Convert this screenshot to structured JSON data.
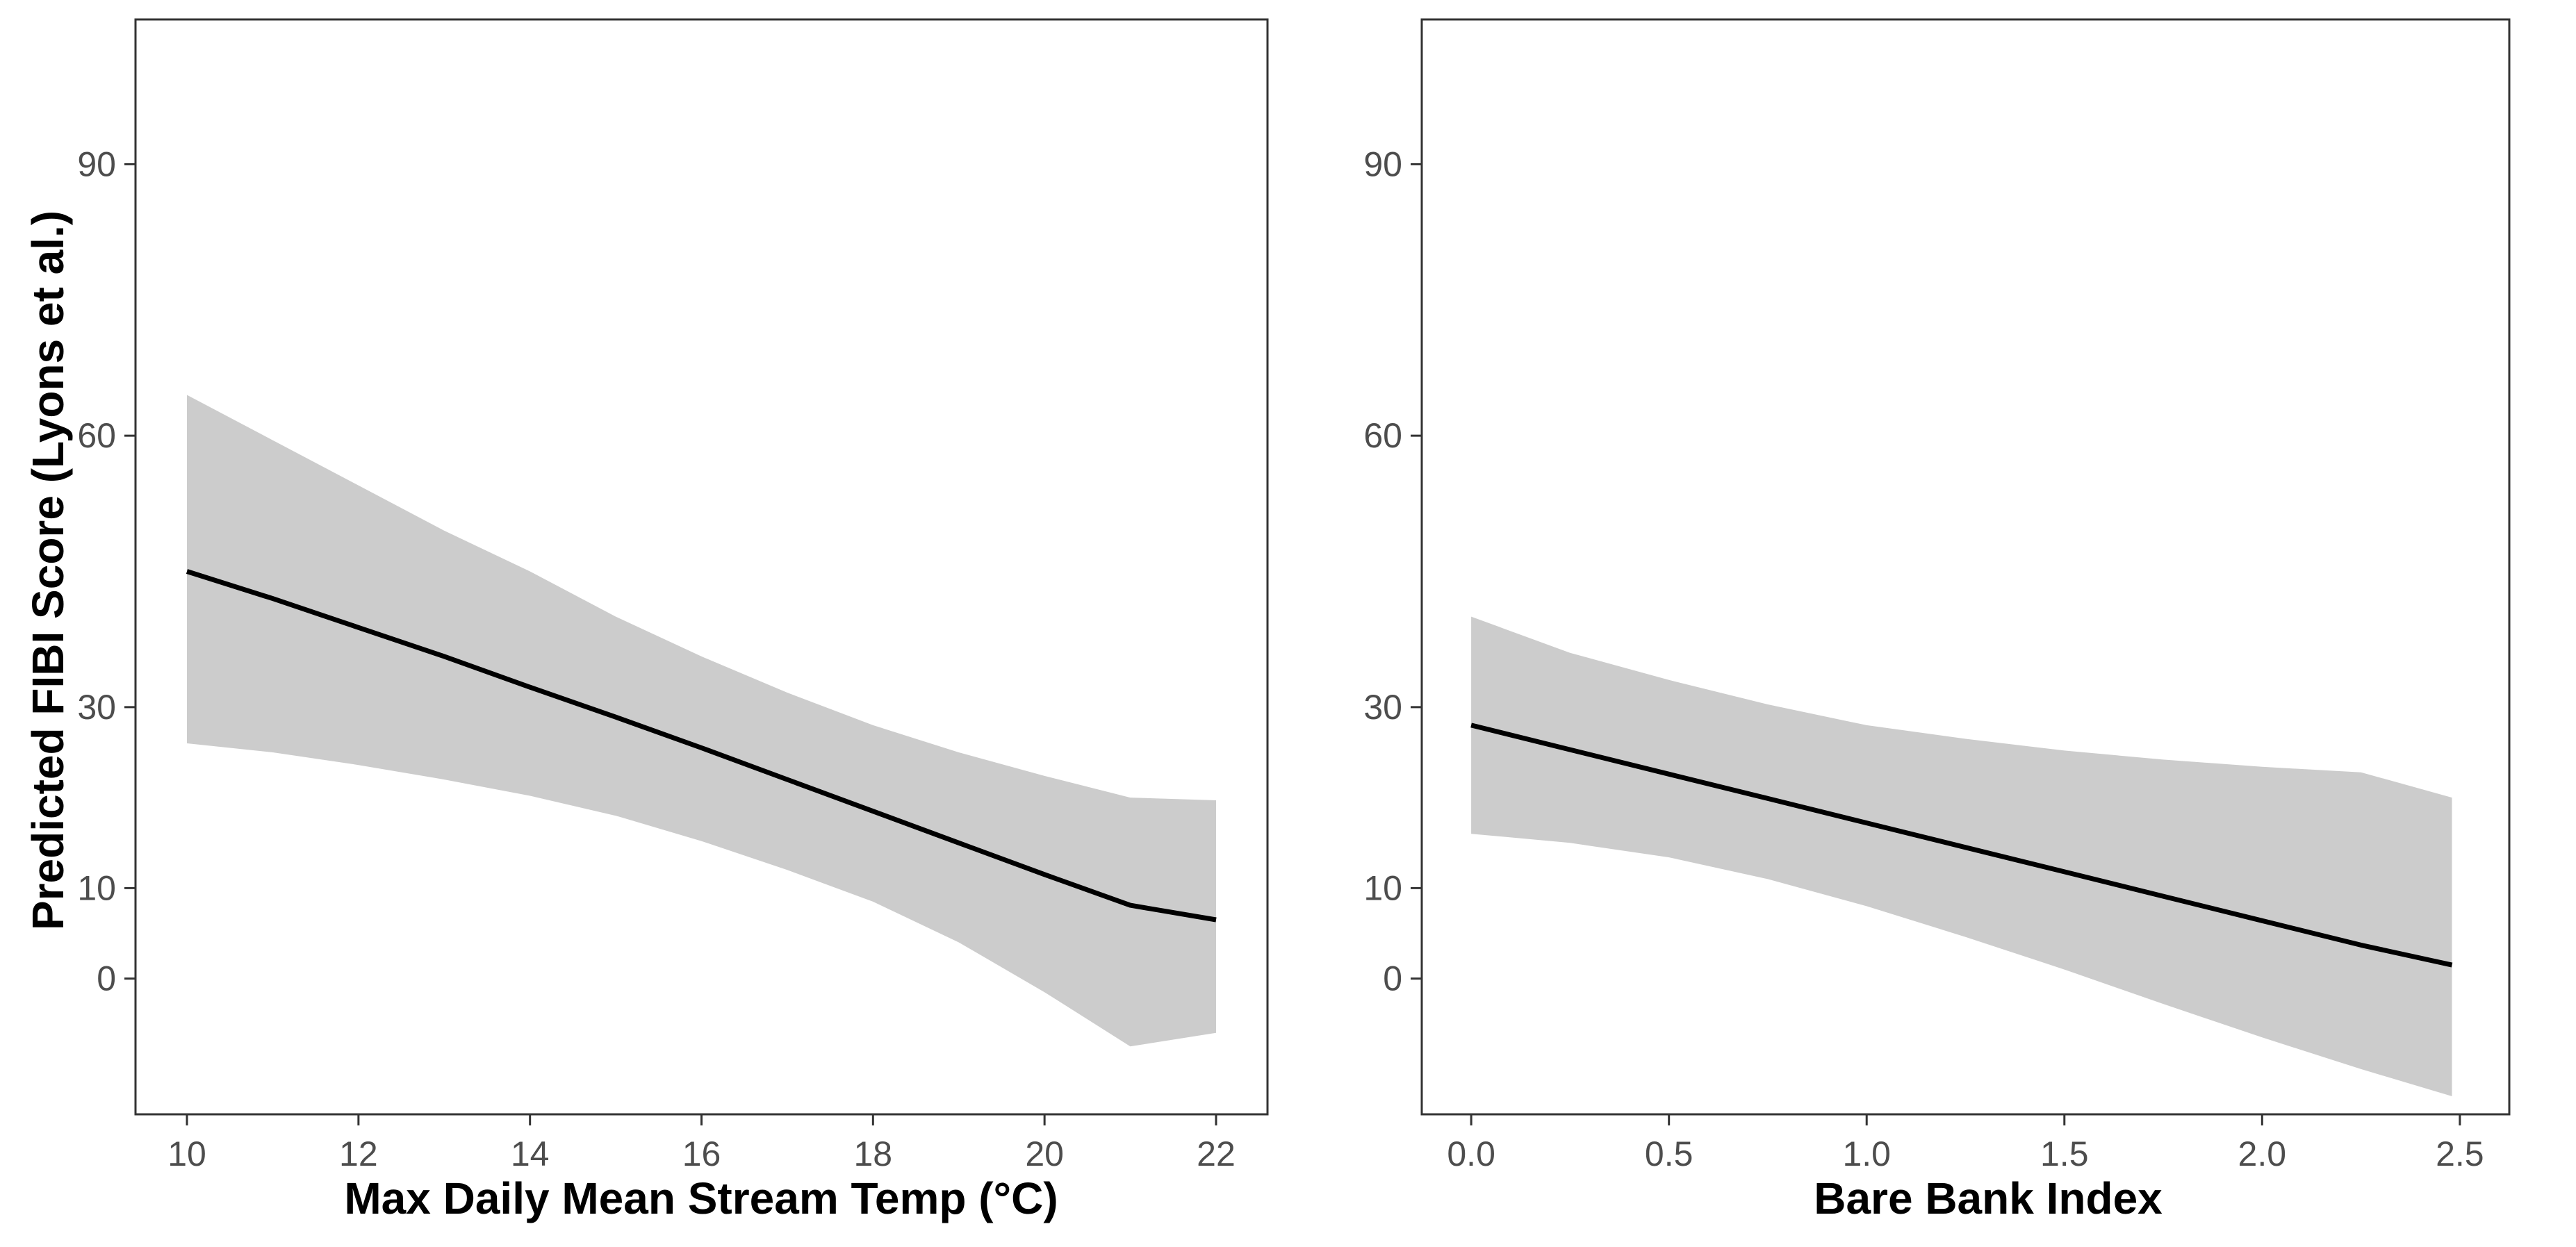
{
  "colors": {
    "background": "#ffffff",
    "band": "#cccccc",
    "line": "#000000",
    "panel_border": "#333333",
    "tick_label": "#4d4d4d"
  },
  "shared_ylabel": "Predicted FIBI Score (Lyons et al.)",
  "chart_data": [
    {
      "type": "line",
      "title": "",
      "xlabel": "Max Daily Mean Stream Temp (°C)",
      "ylabel": "Predicted FIBI Score (Lyons et al.)",
      "xlim": [
        9.4,
        22.6
      ],
      "ylim": [
        -15,
        106
      ],
      "x_ticks": [
        10,
        12,
        14,
        16,
        18,
        20,
        22
      ],
      "x_tick_labels": [
        "10",
        "12",
        "14",
        "16",
        "18",
        "20",
        "22"
      ],
      "y_ticks": [
        0,
        10,
        30,
        60,
        90
      ],
      "y_tick_labels": [
        "0",
        "10",
        "30",
        "60",
        "90"
      ],
      "grid": false,
      "legend": "none",
      "series": [
        {
          "x": [
            10,
            11,
            12,
            13,
            14,
            15,
            16,
            17,
            18,
            19,
            20,
            21,
            22
          ],
          "y": [
            45,
            42,
            38.8,
            35.6,
            32.2,
            28.9,
            25.5,
            22,
            18.5,
            15,
            11.5,
            8.1,
            6.5
          ],
          "lower": [
            26,
            25,
            23.6,
            22,
            20.2,
            18,
            15.2,
            12,
            8.5,
            4,
            -1.5,
            -7.5,
            -6
          ],
          "upper": [
            64.5,
            59.5,
            54.5,
            49.5,
            45,
            40,
            35.6,
            31.6,
            28,
            25,
            22.4,
            20,
            19.7
          ]
        }
      ]
    },
    {
      "type": "line",
      "title": "",
      "xlabel": "Bare Bank Index",
      "ylabel": "",
      "xlim": [
        -0.125,
        2.625
      ],
      "ylim": [
        -15,
        106
      ],
      "x_ticks": [
        0.0,
        0.5,
        1.0,
        1.5,
        2.0,
        2.5
      ],
      "x_tick_labels": [
        "0.0",
        "0.5",
        "1.0",
        "1.5",
        "2.0",
        "2.5"
      ],
      "y_ticks": [
        0,
        10,
        30,
        60,
        90
      ],
      "y_tick_labels": [
        "0",
        "10",
        "30",
        "60",
        "90"
      ],
      "grid": false,
      "legend": "none",
      "series": [
        {
          "x": [
            0.0,
            0.25,
            0.5,
            0.75,
            1.0,
            1.25,
            1.5,
            1.75,
            2.0,
            2.25,
            2.48
          ],
          "y": [
            28,
            25.3,
            22.6,
            19.9,
            17.2,
            14.5,
            11.8,
            9.1,
            6.4,
            3.7,
            1.5
          ],
          "lower": [
            16,
            15,
            13.4,
            11,
            8,
            4.6,
            1,
            -2.8,
            -6.5,
            -10,
            -13
          ],
          "upper": [
            40,
            36,
            33,
            30.3,
            28,
            26.5,
            25.2,
            24.2,
            23.4,
            22.8,
            20
          ]
        }
      ]
    }
  ]
}
